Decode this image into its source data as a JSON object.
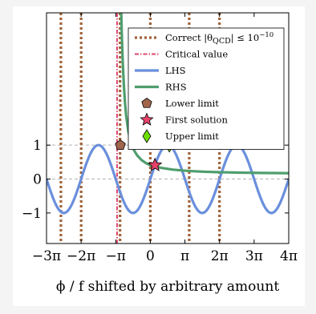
{
  "chart_data": {
    "type": "line",
    "xlabel": "ϕ / f shifted by arbitrary amount",
    "xlim": [
      -9.42478,
      12.56637
    ],
    "ylim": [
      -1.9,
      4.9
    ],
    "x_ticks": [
      {
        "value": -9.42478,
        "label": "−3π"
      },
      {
        "value": -6.28319,
        "label": "−2π"
      },
      {
        "value": -3.14159,
        "label": "−π"
      },
      {
        "value": 0,
        "label": "0"
      },
      {
        "value": 3.14159,
        "label": "π"
      },
      {
        "value": 6.28319,
        "label": "2π"
      },
      {
        "value": 9.42478,
        "label": "3π"
      },
      {
        "value": 12.56637,
        "label": "4π"
      }
    ],
    "y_ticks": [
      {
        "value": 1,
        "label": "1"
      },
      {
        "value": 0,
        "label": "0"
      },
      {
        "value": -1,
        "label": "−1"
      }
    ],
    "horizontal_dashed_lines_y": [
      1,
      0
    ],
    "series": [
      {
        "name": "LHS",
        "kind": "line",
        "color": "#6a8fdc",
        "function": "sin(x)",
        "sample_x": [
          -9.42,
          -7.85,
          -6.28,
          -4.71,
          -3.14,
          -1.57,
          0,
          1.57,
          3.14,
          4.71,
          6.28,
          7.85,
          9.42,
          10.99,
          12.57
        ],
        "sample_y": [
          0,
          -1,
          0,
          1,
          0,
          -1,
          0,
          1,
          0,
          -1,
          0,
          1,
          0,
          -1,
          0
        ]
      },
      {
        "name": "RHS",
        "kind": "line",
        "color": "#4f9e6e",
        "x": [
          -2.65,
          -2.6,
          -2.55,
          -2.5,
          -2.4,
          -2.3,
          -2.2,
          -2.0,
          -1.8,
          -1.5,
          -1.2,
          -0.8,
          -0.4,
          0,
          0.5,
          1,
          2,
          3,
          4,
          5,
          6,
          7,
          8,
          9,
          10,
          11,
          12,
          12.57
        ],
        "y": [
          5.0,
          4.37,
          3.86,
          3.42,
          2.75,
          2.25,
          1.88,
          1.41,
          1.13,
          0.86,
          0.7,
          0.56,
          0.47,
          0.41,
          0.36,
          0.33,
          0.28,
          0.25,
          0.23,
          0.215,
          0.205,
          0.197,
          0.19,
          0.185,
          0.18,
          0.177,
          0.174,
          0.172
        ]
      },
      {
        "name": "Correct |θQCD| ≤ 10⁻¹⁰",
        "kind": "vertical-dotted",
        "color": "#a0623a",
        "x": [
          -8.12,
          -6.28,
          -2.75,
          0,
          3.53,
          6.28
        ]
      },
      {
        "name": "Critical value",
        "kind": "vertical-dashdot",
        "color": "#e0476e",
        "x": [
          -3.02
        ]
      },
      {
        "name": "Lower limit",
        "kind": "marker",
        "marker": "pentagon",
        "color": "#a0654b",
        "x": [
          -2.72
        ],
        "y": [
          1.0
        ]
      },
      {
        "name": "First solution",
        "kind": "marker",
        "marker": "star",
        "color": "#e5436a",
        "x": [
          0.42
        ],
        "y": [
          0.41
        ]
      },
      {
        "name": "Upper limit",
        "kind": "marker",
        "marker": "diamond",
        "color": "#6ce000",
        "x": [
          1.73
        ],
        "y": [
          1.0
        ]
      }
    ],
    "legend": {
      "placement": "top-right",
      "entries": [
        {
          "label": "Correct |θ",
          "sub": "QCD",
          "tail": "| ≤ 10",
          "sup": "−10",
          "kind": "vertical-dotted",
          "color": "#a0623a"
        },
        {
          "label": "Critical value",
          "sub": "",
          "tail": "",
          "sup": "",
          "kind": "vertical-dashdot",
          "color": "#e0476e"
        },
        {
          "label": "LHS",
          "sub": "",
          "tail": "",
          "sup": "",
          "kind": "line",
          "color": "#6a8fdc"
        },
        {
          "label": "RHS",
          "sub": "",
          "tail": "",
          "sup": "",
          "kind": "line",
          "color": "#4f9e6e"
        },
        {
          "label": "Lower limit",
          "sub": "",
          "tail": "",
          "sup": "",
          "kind": "pentagon",
          "color": "#a0654b"
        },
        {
          "label": "First solution",
          "sub": "",
          "tail": "",
          "sup": "",
          "kind": "star",
          "color": "#e5436a"
        },
        {
          "label": "Upper limit",
          "sub": "",
          "tail": "",
          "sup": "",
          "kind": "diamond",
          "color": "#6ce000"
        }
      ]
    }
  }
}
